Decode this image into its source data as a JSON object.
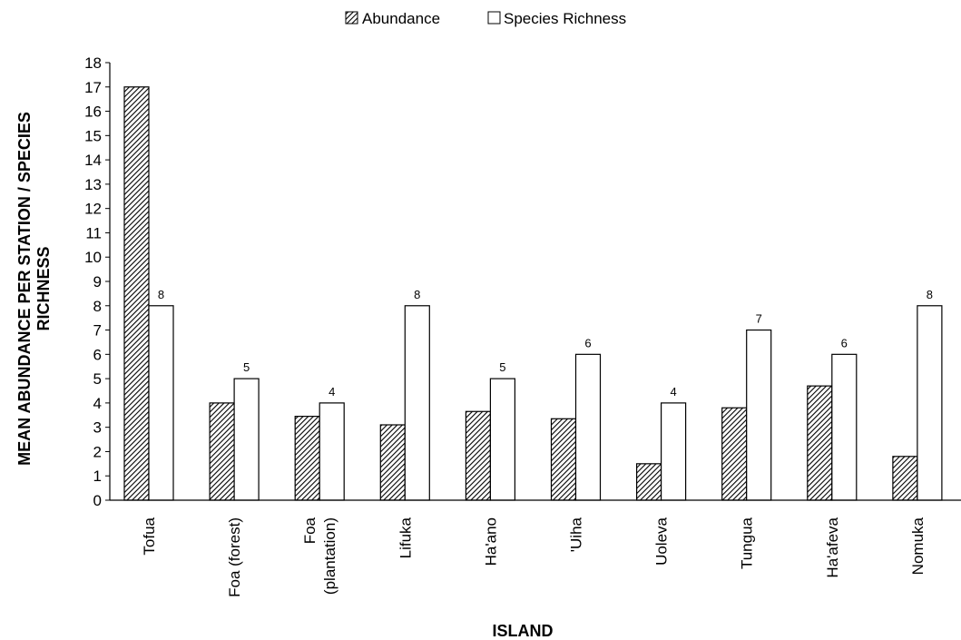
{
  "chart_data": {
    "type": "bar",
    "categories": [
      "Tofua",
      "Foa (forest)",
      "Foa (plantation)",
      "Lifuka",
      "Ha'ano",
      "'Uiha",
      "Uoleva",
      "Tungua",
      "Ha'afeva",
      "Nomuka"
    ],
    "category_lines": [
      [
        "Tofua"
      ],
      [
        "Foa (forest)"
      ],
      [
        "Foa",
        "(plantation)"
      ],
      [
        "Lifuka"
      ],
      [
        "Ha'ano"
      ],
      [
        "'Uiha"
      ],
      [
        "Uoleva"
      ],
      [
        "Tungua"
      ],
      [
        "Ha'afeva"
      ],
      [
        "Nomuka"
      ]
    ],
    "series": [
      {
        "name": "Abundance",
        "pattern": "hatched",
        "values": [
          17.0,
          4.0,
          3.45,
          3.1,
          3.65,
          3.35,
          1.5,
          3.8,
          4.7,
          1.8
        ]
      },
      {
        "name": "Species Richness",
        "pattern": "open",
        "values": [
          8,
          5,
          4,
          8,
          5,
          6,
          4,
          7,
          6,
          8
        ],
        "data_labels": [
          "8",
          "5",
          "4",
          "8",
          "5",
          "6",
          "4",
          "7",
          "6",
          "8"
        ]
      }
    ],
    "xlabel": "ISLAND",
    "ylabel_lines": [
      "MEAN ABUNDANCE PER STATION / SPECIES",
      "RICHNESS"
    ],
    "ylim": [
      0,
      18
    ],
    "yticks": [
      0,
      1,
      2,
      3,
      4,
      5,
      6,
      7,
      8,
      9,
      10,
      11,
      12,
      13,
      14,
      15,
      16,
      17,
      18
    ],
    "grid": false,
    "legend_position": "top-center"
  },
  "colors": {
    "ink": "#000000",
    "fill": "#ffffff"
  }
}
